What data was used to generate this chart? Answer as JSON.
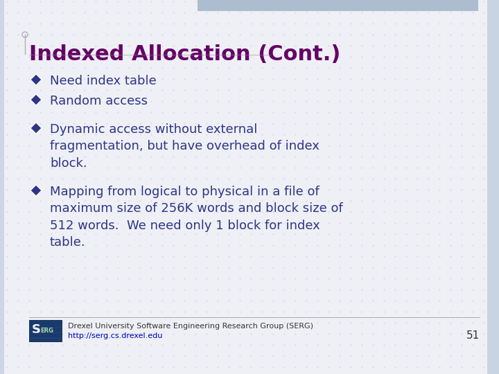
{
  "title": "Indexed Allocation (Cont.)",
  "title_color": "#660066",
  "title_fontsize": 22,
  "background_color": "#eef0f5",
  "grid_color": "#c5cede",
  "bullet_color": "#2e3585",
  "text_color": "#2e3585",
  "top_bar_color": "#adbdd0",
  "right_bar_color": "#c8d4e2",
  "bullet_items": [
    "Need index table",
    "Random access",
    "Dynamic access without external\nfragmentation, but have overhead of index\nblock.",
    "Mapping from logical to physical in a file of\nmaximum size of 256K words and block size of\n512 words.  We need only 1 block for index\ntable."
  ],
  "footer_line1": "Drexel University Software Engineering Research Group (SERG)",
  "footer_line2": "http://serg.cs.drexel.edu",
  "page_number": "51",
  "footer_color": "#333333",
  "url_color": "#0000bb",
  "footer_fontsize": 8,
  "page_num_fontsize": 11,
  "bullet_fontsize": 13,
  "serg_bg": "#1a3a6b",
  "serg_text": "#ffffff",
  "serg_erg": "#aaddaa"
}
